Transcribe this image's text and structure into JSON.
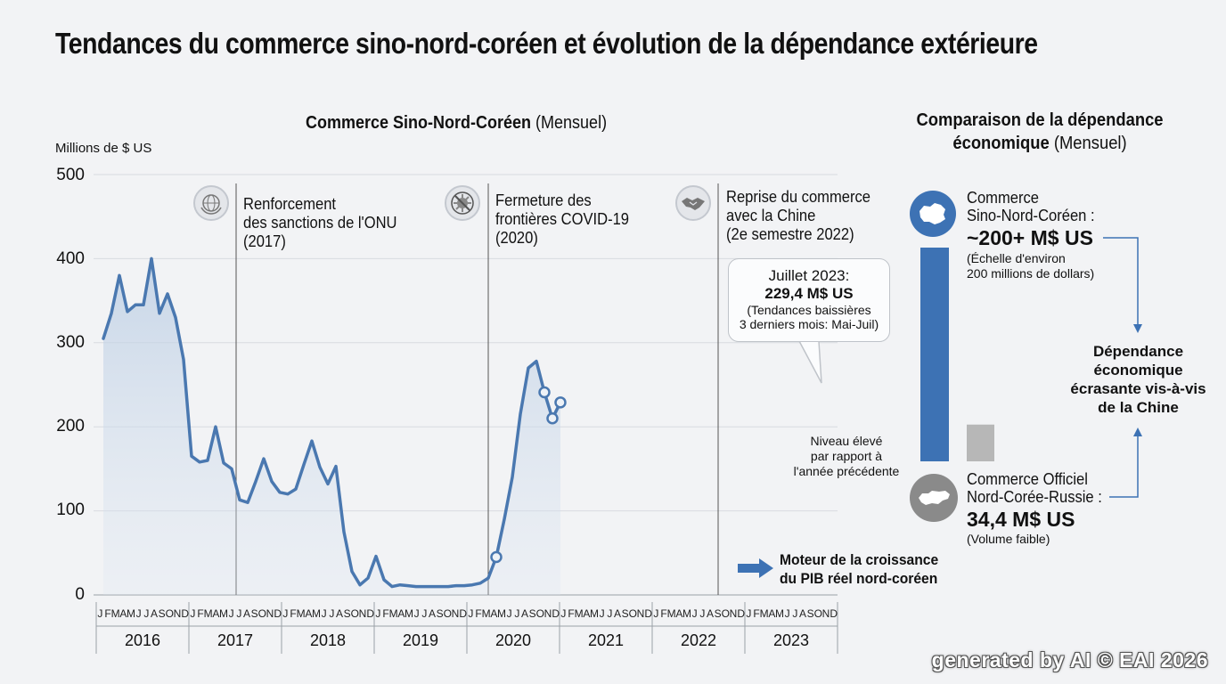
{
  "title": "Tendances du commerce sino-nord-coréen et évolution de la dépendance extérieure",
  "subtitle": {
    "bold": "Commerce Sino-Nord-Coréen",
    "normal": " (Mensuel)"
  },
  "colors": {
    "line": "#4a78b0",
    "bar_china": "#3d72b4",
    "bar_russia": "#b7b7b7",
    "background": "#f2f3f5"
  },
  "chart_data": {
    "type": "line",
    "ylabel": "Millions de $ US",
    "ylim": [
      0,
      500
    ],
    "yticks": [
      0,
      100,
      200,
      300,
      400,
      500
    ],
    "month_letters": [
      "J",
      "F",
      "M",
      "A",
      "M",
      "J",
      "J",
      "A",
      "S",
      "O",
      "N",
      "D"
    ],
    "years": [
      "2016",
      "2017",
      "2018",
      "2019",
      "2020",
      "2021",
      "2022",
      "2023"
    ],
    "series": [
      {
        "values": [
          305,
          335,
          380,
          337,
          345,
          345,
          400,
          335,
          358,
          330,
          280,
          165,
          158,
          160,
          200,
          157,
          150,
          113,
          110,
          135,
          162,
          135,
          122,
          120,
          126,
          155,
          183,
          152,
          132,
          153,
          75,
          28,
          12,
          20,
          46,
          18,
          10,
          12,
          11,
          10,
          10,
          10,
          10,
          10,
          11,
          11,
          12,
          14,
          20,
          45,
          90,
          140,
          215,
          270,
          278,
          241,
          210,
          229
        ]
      }
    ],
    "events": [
      {
        "label": [
          "Renforcement",
          "des sanctions de l'ONU",
          "(2017)"
        ],
        "icon": "un-emblem-icon",
        "month_index": 10
      },
      {
        "label": [
          "Fermeture des",
          "frontières COVID-19",
          "(2020)"
        ],
        "icon": "no-virus-icon",
        "month_index": 48
      },
      {
        "label": [
          "Reprise du commerce",
          "avec la Chine",
          "(2e semestre 2022)"
        ],
        "icon": "handshake-icon",
        "month_index": 77
      }
    ],
    "callout": {
      "l1": "Juillet 2023:",
      "l2": "229,4 M$ US",
      "l3": "(Tendances baissières",
      "l4": "3 derniers mois: Mai-Juil)"
    },
    "note": [
      "Niveau élevé",
      "par rapport à",
      "l'année précédente"
    ],
    "engine": [
      "Moteur de la croissance",
      "du PIB réel nord-coréen"
    ]
  },
  "comparison": {
    "title_bold_1": "Comparaison de la dépendance",
    "title_bold_2": "économique",
    "title_normal": " (Mensuel)",
    "china": {
      "line1": "Commerce",
      "line2": "Sino-Nord-Coréen :",
      "value": "~200+ M$ US",
      "note1": "(Échelle d'environ",
      "note2": "200 millions de dollars)",
      "bar_value": 200
    },
    "russia": {
      "line1": "Commerce Officiel",
      "line2": "Nord-Corée-Russie :",
      "value": "34,4 M$ US",
      "note1": "(Volume faible)",
      "bar_value": 34.4
    },
    "dependency": [
      "Dépendance",
      "économique",
      "écrasante vis-à-vis",
      "de la Chine"
    ]
  },
  "watermark": "generated by AI © EAI 2026"
}
